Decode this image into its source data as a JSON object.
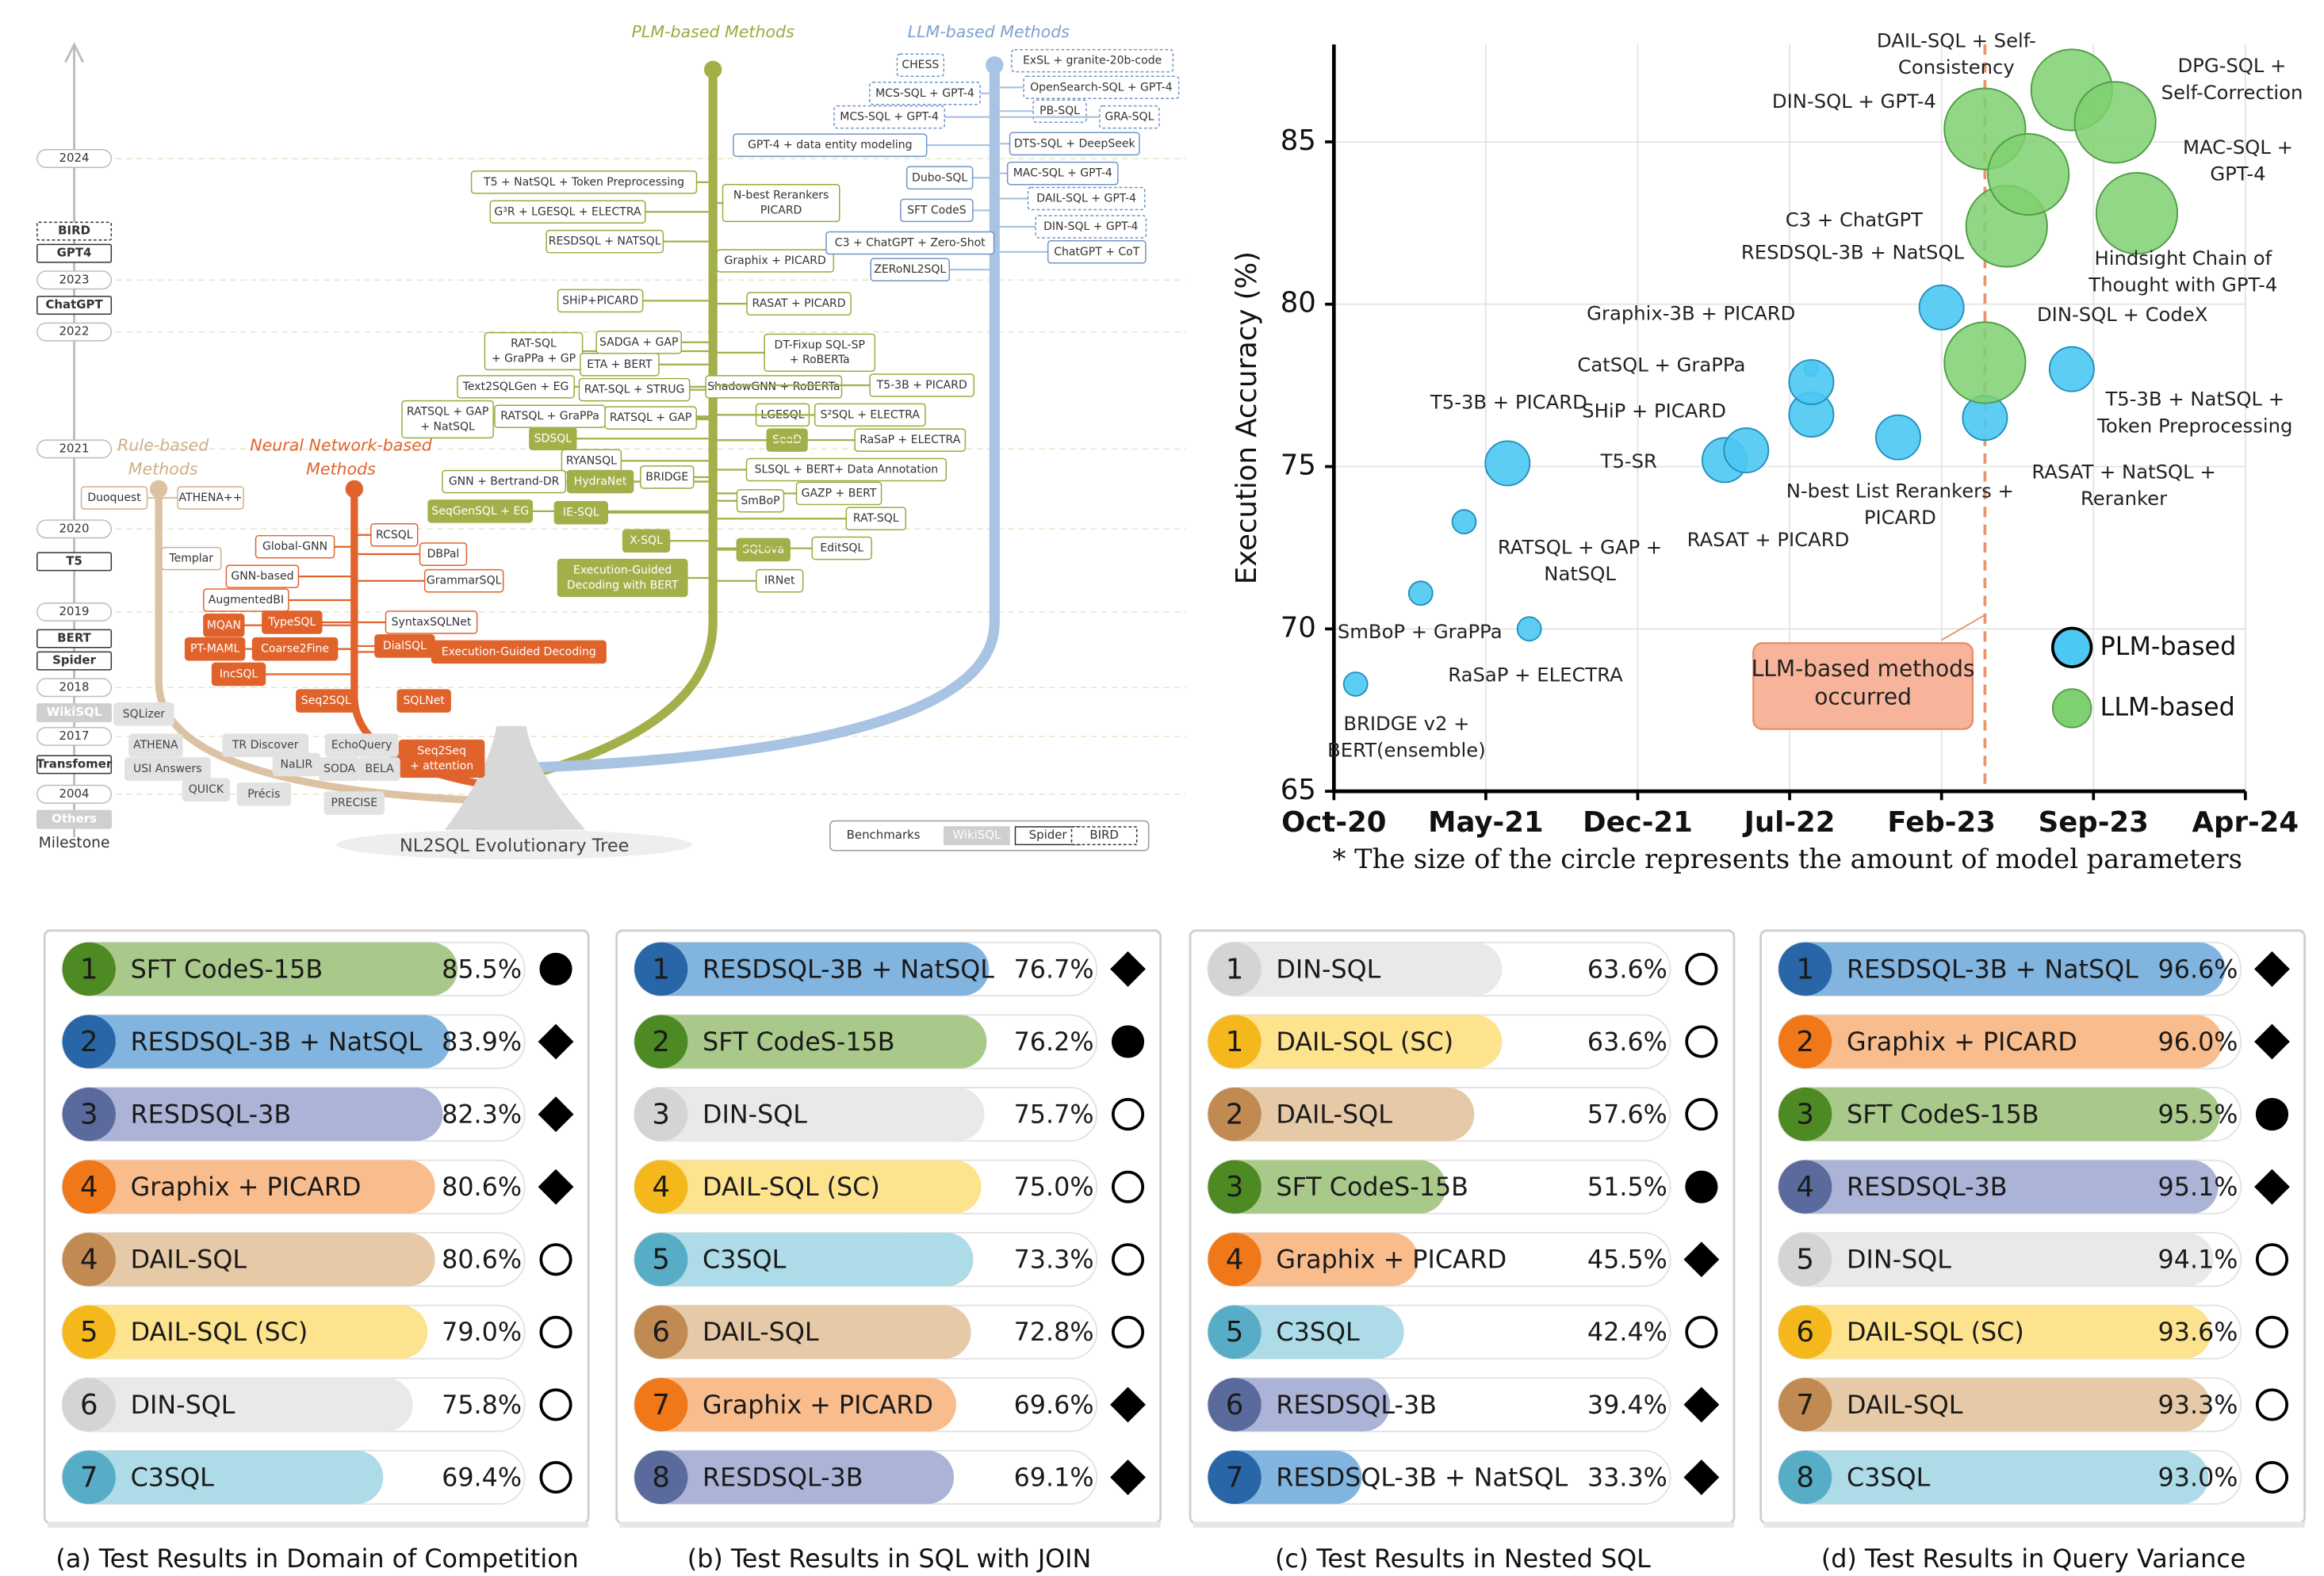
{
  "tree": {
    "plm_title": "PLM-based Methods",
    "llm_title": "LLM-based Methods",
    "rule_title": [
      "Rule-based",
      "Methods"
    ],
    "nn_title": [
      "Neural Network-based",
      "Methods"
    ],
    "tree_title": "NL2SQL Evolutionary Tree",
    "milestone_label": "Milestone",
    "milestones": [
      "2024",
      "BIRD",
      "GPT4",
      "2023",
      "ChatGPT",
      "2022",
      "2021",
      "2020",
      "T5",
      "2019",
      "BERT",
      "Spider",
      "2018",
      "WikiSQL",
      "2017",
      "Transfomer",
      "2004",
      "Others"
    ],
    "benchmarks": {
      "title": "Benchmarks",
      "items": [
        "WikiSQL",
        "Spider",
        "BIRD"
      ]
    },
    "plm_nodes": [
      "T5 + NatSQL + Token Preprocessing",
      "G³R + LGESQL + ELECTRA",
      [
        "N-best Rerankers",
        "PICARD"
      ],
      "RESDSQL + NATSQL",
      "Graphix + PICARD",
      "SHiP+PICARD",
      "RASAT + PICARD",
      [
        "RAT-SQL",
        "+ GraPPa + GP"
      ],
      "SADGA + GAP",
      "ETA + BERT",
      [
        "DT-Fixup SQL-SP",
        "+ RoBERTa"
      ],
      "Text2SQLGen + EG",
      "RAT-SQL + STRUG",
      "ShadowGNN + RoBERTa",
      "T5-3B + PICARD",
      [
        "RATSQL + GAP",
        "+ NatSQL"
      ],
      "RATSQL + GraPPa",
      "RATSQL + GAP",
      "LGESQL",
      "S²SQL + ELECTRA",
      "SDSQL",
      "SeaD",
      "RaSaP + ELECTRA",
      "RYANSQL",
      "SLSQL + BERT+ Data Annotation",
      "GNN + Bertrand-DR",
      "HydraNet",
      "BRIDGE",
      "GAZP + BERT",
      "SmBoP",
      "RAT-SQL",
      "SeqGenSQL + EG",
      "IE-SQL",
      "X-SQL",
      "SQLova",
      "EditSQL",
      [
        "Execution-Guided",
        "Decoding with BERT"
      ],
      "IRNet"
    ],
    "llm_nodes": [
      "CHESS",
      "ExSL + granite-20b-code",
      "MCS-SQL + GPT-4",
      "OpenSearch-SQL + GPT-4",
      "MCS-SQL + GPT-4",
      "PB-SQL",
      "GRA-SQL",
      "GPT-4 + data entity modeling",
      "DTS-SQL + DeepSeek",
      "Dubo-SQL",
      "MAC-SQL + GPT-4",
      "SFT CodeS",
      "DAIL-SQL + GPT-4",
      "C3 + ChatGPT + Zero-Shot",
      "DIN-SQL + GPT-4",
      "ZERoNL2SQL",
      "ChatGPT + CoT"
    ],
    "nn_nodes": [
      "Global-GNN",
      "RCSQL",
      "DBPal",
      "GNN-based",
      "GrammarSQL",
      "AugmentedBI",
      "MQAN",
      "TypeSQL",
      "SyntaxSQLNet",
      "PT-MAML",
      "Coarse2Fine",
      "DialSQL",
      "Execution-Guided Decoding",
      "IncSQL",
      "Seq2SQL",
      "SQLNet",
      [
        "Seq2Seq",
        "+ attention"
      ]
    ],
    "rule_nodes": [
      "Duoquest",
      "ATHENA++",
      "Templar",
      "SQLizer",
      "ATHENA",
      "USI Answers",
      "TR Discover",
      "NaLIR",
      "QUICK",
      "Précis",
      "EchoQuery",
      "SODA",
      "BELA",
      "PRECISE"
    ]
  },
  "chart_data": [
    {
      "type": "scatter",
      "ylabel": "Execution Accuracy (%)",
      "caption": "* The size of the circle represents the amount of model parameters",
      "xlim": [
        "2020-10",
        "2024-04"
      ],
      "xticks": [
        {
          "value": "2020-10",
          "label": "Oct-20"
        },
        {
          "value": "2021-05",
          "label": "May-21"
        },
        {
          "value": "2021-12",
          "label": "Dec-21"
        },
        {
          "value": "2022-07",
          "label": "Jul-22"
        },
        {
          "value": "2023-02",
          "label": "Feb-23"
        },
        {
          "value": "2023-09",
          "label": "Sep-23"
        },
        {
          "value": "2024-04",
          "label": "Apr-24"
        }
      ],
      "ylim": [
        65,
        88
      ],
      "yticks": [
        65,
        70,
        75,
        80,
        85
      ],
      "grid": true,
      "annotation": {
        "text": [
          "LLM-based methods",
          "occurred"
        ],
        "x": "2023-04"
      },
      "series": [
        {
          "name": "PLM-based",
          "color": "#4cc8f2",
          "labels": [
            [
              "BRIDGE v2 +",
              "BERT(ensemble)"
            ],
            "SmBoP + GraPPa",
            [
              "RATSQL + GAP +",
              "NatSQL"
            ],
            "RaSaP + ELECTRA",
            "T5-3B + PICARD",
            "T5-SR",
            "RASAT + PICARD",
            "SHiP + PICARD",
            "CatSQL + GraPPa",
            "Graphix-3B + PICARD",
            [
              "N-best List Rerankers +",
              "PICARD"
            ],
            "RESDSQL-3B + NatSQL",
            [
              "RASAT + NatSQL +",
              "Reranker"
            ],
            [
              "T5-3B + NatSQL +",
              "Token Preprocessing"
            ]
          ],
          "x": [
            "2020-11",
            "2021-02",
            "2021-04",
            "2021-07",
            "2021-06",
            "2022-04",
            "2022-05",
            "2022-08",
            "2022-08",
            "2022-08",
            "2022-12",
            "2023-02",
            "2023-04",
            "2023-08"
          ],
          "values": [
            68.3,
            71.1,
            73.3,
            70.0,
            75.1,
            75.2,
            75.5,
            76.6,
            78.0,
            77.6,
            75.9,
            79.9,
            76.5,
            78.0
          ],
          "sizes": [
            0.3,
            0.3,
            0.3,
            0.3,
            3,
            3,
            3,
            3,
            0.1,
            3,
            3,
            3,
            3,
            3
          ]
        },
        {
          "name": "LLM-based",
          "color": "#7fd070",
          "labels": [
            "DIN-SQL + CodeX",
            "C3 + ChatGPT",
            "DIN-SQL + GPT-4",
            [
              "DAIL-SQL + Self-",
              "Consistency"
            ],
            [
              "DPG-SQL +",
              "Self-Correction"
            ],
            [
              "MAC-SQL +",
              "GPT-4"
            ],
            [
              "Hindsight Chain of",
              "Thought with GPT-4"
            ]
          ],
          "x": [
            "2023-04",
            "2023-05",
            "2023-04",
            "2023-08",
            "2023-10",
            "2023-06",
            "2023-11"
          ],
          "values": [
            78.2,
            82.4,
            85.4,
            86.6,
            85.6,
            84.0,
            82.8
          ],
          "sizes": [
            175,
            175,
            175,
            175,
            175,
            175,
            175
          ]
        }
      ]
    },
    {
      "type": "bar",
      "orientation": "horizontal",
      "caption": "(a) Test Results in Domain of Competition",
      "xlim": [
        0,
        100
      ],
      "ranks": [
        1,
        2,
        3,
        4,
        4,
        5,
        6,
        7
      ],
      "categories": [
        "SFT CodeS-15B",
        "RESDSQL-3B + NatSQL",
        "RESDSQL-3B",
        "Graphix + PICARD",
        "DAIL-SQL",
        "DAIL-SQL (SC)",
        "DIN-SQL",
        "C3SQL"
      ],
      "values": [
        85.5,
        83.9,
        82.3,
        80.6,
        80.6,
        79.0,
        75.8,
        69.4
      ],
      "value_labels": [
        "85.5%",
        "83.9%",
        "82.3%",
        "80.6%",
        "80.6%",
        "79.0%",
        "75.8%",
        "69.4%"
      ],
      "markers": [
        "filled",
        "diamond",
        "diamond",
        "diamond",
        "open",
        "open",
        "open",
        "open"
      ],
      "colors": [
        "#a8c98a",
        "#82b4e0",
        "#abb4d6",
        "#f9bc8c",
        "#e6c9a6",
        "#fde38e",
        "#e9e9e9",
        "#aedbe8"
      ],
      "rank_colors": [
        "#4e8a23",
        "#2866a8",
        "#5a6a9c",
        "#f07818",
        "#c08a52",
        "#f5b81c",
        "#d4d4d4",
        "#58adc6"
      ]
    },
    {
      "type": "bar",
      "orientation": "horizontal",
      "caption": "(b) Test Results in SQL with JOIN",
      "xlim": [
        0,
        100
      ],
      "ranks": [
        1,
        2,
        3,
        4,
        5,
        6,
        7,
        8
      ],
      "categories": [
        "RESDSQL-3B + NatSQL",
        "SFT CodeS-15B",
        "DIN-SQL",
        "DAIL-SQL (SC)",
        "C3SQL",
        "DAIL-SQL",
        "Graphix + PICARD",
        "RESDSQL-3B"
      ],
      "values": [
        76.7,
        76.2,
        75.7,
        75.0,
        73.3,
        72.8,
        69.6,
        69.1
      ],
      "value_labels": [
        "76.7%",
        "76.2%",
        "75.7%",
        "75.0%",
        "73.3%",
        "72.8%",
        "69.6%",
        "69.1%"
      ],
      "markers": [
        "diamond",
        "filled",
        "open",
        "open",
        "open",
        "open",
        "diamond",
        "diamond"
      ],
      "colors": [
        "#82b4e0",
        "#a8c98a",
        "#e9e9e9",
        "#fde38e",
        "#aedbe8",
        "#e6c9a6",
        "#f9bc8c",
        "#abb4d6"
      ],
      "rank_colors": [
        "#2866a8",
        "#4e8a23",
        "#d4d4d4",
        "#f5b81c",
        "#58adc6",
        "#c08a52",
        "#f07818",
        "#5a6a9c"
      ]
    },
    {
      "type": "bar",
      "orientation": "horizontal",
      "caption": "(c) Test Results in Nested SQL",
      "xlim": [
        0,
        100
      ],
      "ranks": [
        1,
        1,
        2,
        3,
        4,
        5,
        6,
        7
      ],
      "categories": [
        "DIN-SQL",
        "DAIL-SQL (SC)",
        "DAIL-SQL",
        "SFT CodeS-15B",
        "Graphix + PICARD",
        "C3SQL",
        "RESDSQL-3B",
        "RESDSQL-3B + NatSQL"
      ],
      "values": [
        63.6,
        63.6,
        57.6,
        51.5,
        45.5,
        42.4,
        39.4,
        33.3
      ],
      "value_labels": [
        "63.6%",
        "63.6%",
        "57.6%",
        "51.5%",
        "45.5%",
        "42.4%",
        "39.4%",
        "33.3%"
      ],
      "markers": [
        "open",
        "open",
        "open",
        "filled",
        "diamond",
        "open",
        "diamond",
        "diamond"
      ],
      "colors": [
        "#e9e9e9",
        "#fde38e",
        "#e6c9a6",
        "#a8c98a",
        "#f9bc8c",
        "#aedbe8",
        "#abb4d6",
        "#82b4e0"
      ],
      "rank_colors": [
        "#d4d4d4",
        "#f5b81c",
        "#c08a52",
        "#4e8a23",
        "#f07818",
        "#58adc6",
        "#5a6a9c",
        "#2866a8"
      ]
    },
    {
      "type": "bar",
      "orientation": "horizontal",
      "caption": "(d) Test Results in Query Variance",
      "xlim": [
        0,
        100
      ],
      "ranks": [
        1,
        2,
        3,
        4,
        5,
        6,
        7,
        8
      ],
      "categories": [
        "RESDSQL-3B + NatSQL",
        "Graphix + PICARD",
        "SFT CodeS-15B",
        "RESDSQL-3B",
        "DIN-SQL",
        "DAIL-SQL (SC)",
        "DAIL-SQL",
        "C3SQL"
      ],
      "values": [
        96.6,
        96.0,
        95.5,
        95.1,
        94.1,
        93.6,
        93.3,
        93.0
      ],
      "value_labels": [
        "96.6%",
        "96.0%",
        "95.5%",
        "95.1%",
        "94.1%",
        "93.6%",
        "93.3%",
        "93.0%"
      ],
      "markers": [
        "diamond",
        "diamond",
        "filled",
        "diamond",
        "open",
        "open",
        "open",
        "open"
      ],
      "colors": [
        "#82b4e0",
        "#f9bc8c",
        "#a8c98a",
        "#abb4d6",
        "#e9e9e9",
        "#fde38e",
        "#e6c9a6",
        "#aedbe8"
      ],
      "rank_colors": [
        "#2866a8",
        "#f07818",
        "#4e8a23",
        "#5a6a9c",
        "#d4d4d4",
        "#f5b81c",
        "#c08a52",
        "#58adc6"
      ]
    }
  ]
}
